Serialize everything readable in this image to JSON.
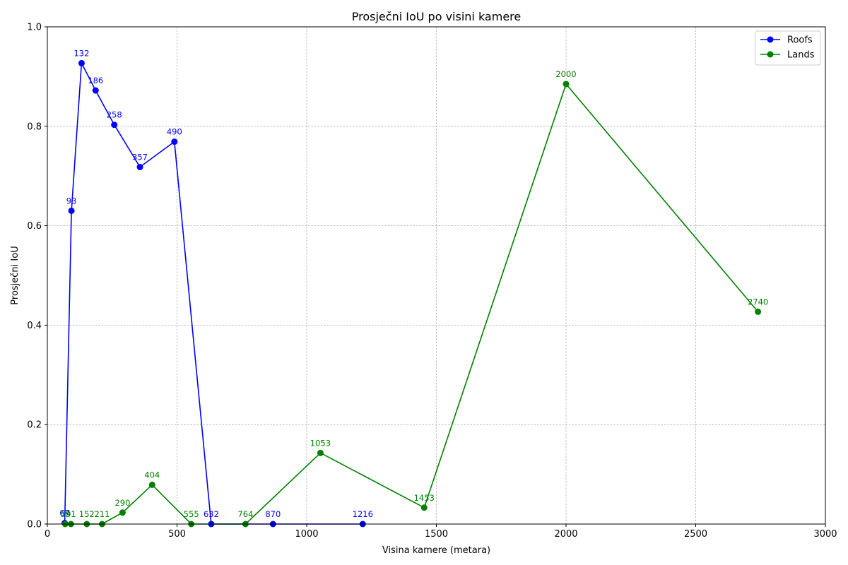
{
  "chart_data": {
    "type": "line",
    "title": "Prosječni IoU po visini kamere",
    "xlabel": "Visina kamere (metara)",
    "ylabel": "Prosječni IoU",
    "xlim": [
      0,
      3000
    ],
    "ylim": [
      0,
      1.0
    ],
    "xticks": [
      "0",
      "500",
      "1000",
      "1500",
      "2000",
      "2500",
      "3000"
    ],
    "yticks": [
      "0.0",
      "0.2",
      "0.4",
      "0.6",
      "0.8",
      "1.0"
    ],
    "grid": true,
    "legend_position": "top-right",
    "series": [
      {
        "name": "Roofs",
        "color": "#0000ff",
        "x": [
          67,
          93,
          132,
          186,
          258,
          357,
          490,
          632,
          870,
          1216
        ],
        "y": [
          0.002,
          0.63,
          0.927,
          0.872,
          0.803,
          0.718,
          0.769,
          0.0,
          0.0,
          0.0
        ],
        "labels": [
          "67",
          "93",
          "132",
          "186",
          "258",
          "357",
          "490",
          "632",
          "870",
          "1216"
        ]
      },
      {
        "name": "Lands",
        "color": "#008000",
        "x": [
          69,
          91,
          152,
          211,
          290,
          404,
          555,
          764,
          1053,
          1453,
          2000,
          2740
        ],
        "y": [
          0.0,
          0.0,
          0.0,
          0.0,
          0.023,
          0.079,
          0.0,
          0.0,
          0.143,
          0.033,
          0.885,
          0.427
        ],
        "labels": [
          "69",
          "91",
          "152",
          "211",
          "290",
          "404",
          "555",
          "764",
          "1053",
          "1453",
          "2000",
          "2740"
        ]
      }
    ]
  }
}
